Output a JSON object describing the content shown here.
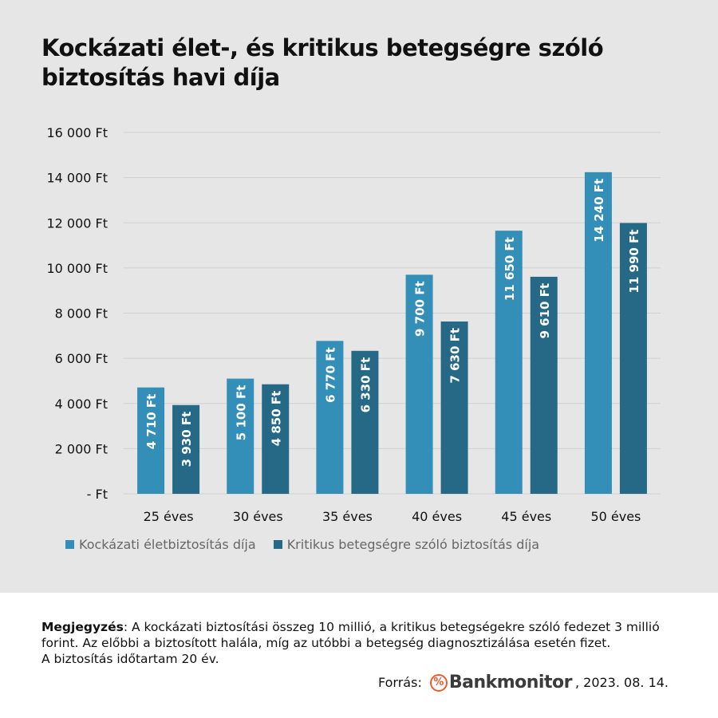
{
  "chart_data": {
    "type": "bar",
    "title": "Kockázati élet-, és kritikus betegségre szóló biztosítás havi díja",
    "categories": [
      "25 éves",
      "30 éves",
      "35 éves",
      "40 éves",
      "45 éves",
      "50 éves"
    ],
    "series": [
      {
        "name": "Kockázati életbiztosítás díja",
        "color": "#338fb8",
        "values": [
          4710,
          5100,
          6770,
          9700,
          11650,
          14240
        ],
        "labels": [
          "4 710 Ft",
          "5 100 Ft",
          "6 770 Ft",
          "9 700 Ft",
          "11 650 Ft",
          "14 240 Ft"
        ]
      },
      {
        "name": "Kritikus betegségre szóló biztosítás díja",
        "color": "#266986",
        "values": [
          3930,
          4850,
          6330,
          7630,
          9610,
          11990
        ],
        "labels": [
          "3 930 Ft",
          "4 850 Ft",
          "6 330 Ft",
          "7 630 Ft",
          "9 610 Ft",
          "11 990 Ft"
        ]
      }
    ],
    "yticks": [
      0,
      2000,
      4000,
      6000,
      8000,
      10000,
      12000,
      14000,
      16000
    ],
    "ytick_labels": [
      "-   Ft",
      "2 000 Ft",
      "4 000 Ft",
      "6 000 Ft",
      "8 000 Ft",
      "10 000 Ft",
      "12 000 Ft",
      "14 000 Ft",
      "16 000 Ft"
    ],
    "ylim": [
      0,
      16000
    ],
    "grid": true,
    "legend_position": "bottom-left",
    "xlabel": "",
    "ylabel": ""
  },
  "note": {
    "bold": "Megjegyzés",
    "text": ": A kockázati biztosítási összeg 10 millió, a kritikus betegségekre szóló fedezet 3 millió forint. Az előbbi a biztosított halála, míg az utóbbi a betegség diagnosztizálása esetén fizet.",
    "duration": "A biztosítás időtartam 20 év."
  },
  "source": {
    "label": "Forrás:",
    "logo_symbol": "%",
    "logo_text": "Bankmonitor",
    "date": ", 2023. 08. 14."
  }
}
